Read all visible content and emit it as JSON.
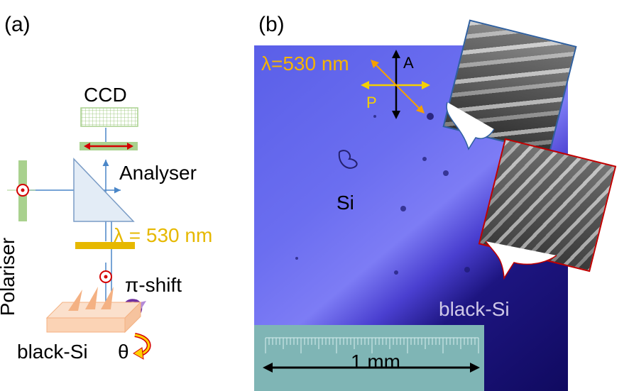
{
  "panel_a": {
    "panel_label": "(a)",
    "ccd": "CCD",
    "analyser": "Analyser",
    "polariser": "Polariser",
    "wavelength": "λ = 530 nm",
    "pi_shift": "π-shift",
    "sample": "black-Si",
    "theta": "θ",
    "colors": {
      "green": "#a9d18e",
      "yellow": "#e6b800",
      "red": "#d40000",
      "blue": "#4a86c8",
      "purple": "#7030a0",
      "salmon": "#f4b183"
    }
  },
  "panel_b": {
    "panel_label": "(b)",
    "wavelength": "λ=530 nm",
    "analyser_axis": "A",
    "polariser_axis": "P",
    "si_label": "Si",
    "black_si_label": "black-Si",
    "scale_bar": "1 mm",
    "colors": {
      "text_orange": "#f5b400",
      "arrow_yellow": "#f5d000",
      "inset_blue_border": "#2f5f9e",
      "inset_red_border": "#c00000"
    }
  }
}
